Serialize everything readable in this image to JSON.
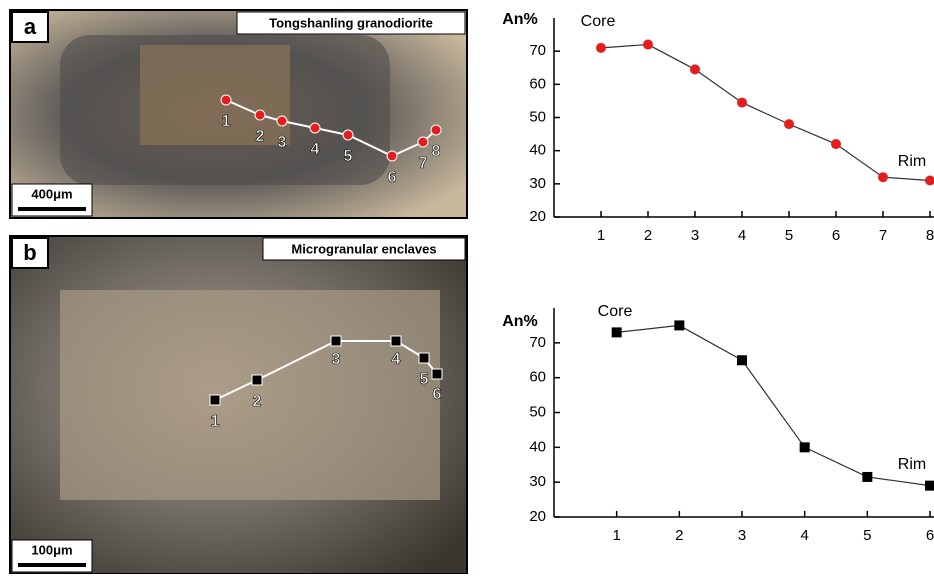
{
  "photos": [
    {
      "label": "a",
      "caption": "Tongshanling granodiorite",
      "scale_bar": "400μm",
      "points": [
        "1",
        "2",
        "3",
        "4",
        "5",
        "6",
        "7",
        "8"
      ]
    },
    {
      "label": "b",
      "caption": "Microgranular enclaves",
      "scale_bar": "100μm",
      "points": [
        "1",
        "2",
        "3",
        "4",
        "5",
        "6"
      ]
    }
  ],
  "chart_data": [
    {
      "type": "line",
      "y_label": "An%",
      "x": [
        1,
        2,
        3,
        4,
        5,
        6,
        7,
        8
      ],
      "values": [
        71,
        72,
        64.5,
        54.5,
        48,
        42,
        32,
        31
      ],
      "color": "#e41e1e",
      "marker": "circle",
      "xlim": [
        0,
        8
      ],
      "xticks": [
        1,
        2,
        3,
        4,
        5,
        6,
        7,
        8
      ],
      "ylim": [
        20,
        80
      ],
      "yticks": [
        20,
        30,
        40,
        50,
        60,
        70
      ],
      "annotations": [
        "Core",
        "Rim"
      ]
    },
    {
      "type": "line",
      "y_label": "An%",
      "x": [
        1,
        2,
        3,
        4,
        5,
        6
      ],
      "values": [
        73,
        75,
        65,
        40,
        31.5,
        29
      ],
      "color": "#000000",
      "marker": "square",
      "xlim": [
        0,
        6
      ],
      "xticks": [
        1,
        2,
        3,
        4,
        5,
        6
      ],
      "ylim": [
        20,
        80
      ],
      "yticks": [
        20,
        30,
        40,
        50,
        60,
        70
      ],
      "annotations": [
        "Core",
        "Rim"
      ]
    }
  ]
}
